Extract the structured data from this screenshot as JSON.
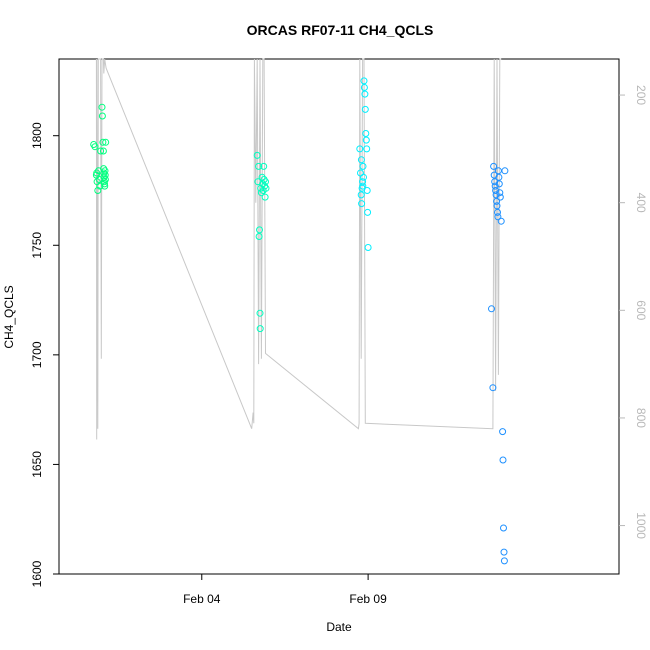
{
  "chart_data": {
    "type": "scatter",
    "title": "ORCAS RF07-11 CH4_QCLS",
    "xlabel": "Date",
    "ylabel": "CH4_QCLS",
    "ylim": [
      1600,
      1835
    ],
    "yticks": [
      1600,
      1650,
      1700,
      1750,
      1800
    ],
    "x_axis": {
      "type": "date",
      "range_start": "2016-01-30T17:00",
      "range_end": "2016-02-16T13:00",
      "ticks": [
        {
          "value": "2016-02-04T00:00",
          "label": "Feb 04"
        },
        {
          "value": "2016-02-09T00:00",
          "label": "Feb 09"
        }
      ]
    },
    "secondary_axis": {
      "side": "right",
      "range": [
        1090,
        133
      ],
      "ticks": [
        200,
        400,
        600,
        800,
        1000
      ],
      "color": "#b8b8b8"
    },
    "grid": false,
    "series": [
      {
        "color": "#00ff7f",
        "points": [
          {
            "x": "2016-01-31T18:00",
            "y": 1796
          },
          {
            "x": "2016-01-31T19:00",
            "y": 1795
          },
          {
            "x": "2016-01-31T20:00",
            "y": 1782
          },
          {
            "x": "2016-01-31T20:30",
            "y": 1779
          },
          {
            "x": "2016-01-31T21:00",
            "y": 1775
          },
          {
            "x": "2016-01-31T21:30",
            "y": 1784
          },
          {
            "x": "2016-01-31T22:00",
            "y": 1780
          },
          {
            "x": "2016-01-31T23:00",
            "y": 1793
          },
          {
            "x": "2016-02-01T00:00",
            "y": 1813
          },
          {
            "x": "2016-02-01T00:20",
            "y": 1809
          },
          {
            "x": "2016-02-01T00:40",
            "y": 1797
          },
          {
            "x": "2016-02-01T01:00",
            "y": 1793
          },
          {
            "x": "2016-02-01T01:10",
            "y": 1785
          },
          {
            "x": "2016-02-01T01:20",
            "y": 1783
          },
          {
            "x": "2016-02-01T01:30",
            "y": 1781
          },
          {
            "x": "2016-02-01T01:40",
            "y": 1779
          },
          {
            "x": "2016-02-01T01:50",
            "y": 1778
          },
          {
            "x": "2016-02-01T02:00",
            "y": 1777
          },
          {
            "x": "2016-02-01T02:10",
            "y": 1784
          },
          {
            "x": "2016-02-01T02:20",
            "y": 1782
          },
          {
            "x": "2016-02-01T02:30",
            "y": 1780
          },
          {
            "x": "2016-02-01T02:40",
            "y": 1797
          },
          {
            "x": "2016-01-31T20:10",
            "y": 1783
          },
          {
            "x": "2016-01-31T22:30",
            "y": 1777
          }
        ]
      },
      {
        "color": "#00ffc0",
        "points": [
          {
            "x": "2016-02-05T16:00",
            "y": 1791
          },
          {
            "x": "2016-02-05T16:30",
            "y": 1779
          },
          {
            "x": "2016-02-05T17:00",
            "y": 1786
          },
          {
            "x": "2016-02-05T17:20",
            "y": 1754
          },
          {
            "x": "2016-02-05T17:40",
            "y": 1757
          },
          {
            "x": "2016-02-05T18:00",
            "y": 1719
          },
          {
            "x": "2016-02-05T18:10",
            "y": 1712
          },
          {
            "x": "2016-02-05T18:30",
            "y": 1776
          },
          {
            "x": "2016-02-05T19:00",
            "y": 1774
          },
          {
            "x": "2016-02-05T19:30",
            "y": 1781
          },
          {
            "x": "2016-02-05T20:00",
            "y": 1778
          },
          {
            "x": "2016-02-05T20:20",
            "y": 1775
          },
          {
            "x": "2016-02-05T20:40",
            "y": 1786
          },
          {
            "x": "2016-02-05T21:00",
            "y": 1780
          },
          {
            "x": "2016-02-05T21:20",
            "y": 1777
          },
          {
            "x": "2016-02-05T21:40",
            "y": 1772
          },
          {
            "x": "2016-02-05T22:00",
            "y": 1779
          },
          {
            "x": "2016-02-05T22:20",
            "y": 1776
          }
        ]
      },
      {
        "color": "#00f0ff",
        "points": [
          {
            "x": "2016-02-08T18:00",
            "y": 1794
          },
          {
            "x": "2016-02-08T18:30",
            "y": 1783
          },
          {
            "x": "2016-02-08T19:00",
            "y": 1773
          },
          {
            "x": "2016-02-08T19:20",
            "y": 1769
          },
          {
            "x": "2016-02-08T19:40",
            "y": 1776
          },
          {
            "x": "2016-02-08T20:00",
            "y": 1779
          },
          {
            "x": "2016-02-08T20:20",
            "y": 1786
          },
          {
            "x": "2016-02-08T20:40",
            "y": 1781
          },
          {
            "x": "2016-02-08T21:00",
            "y": 1825
          },
          {
            "x": "2016-02-08T21:20",
            "y": 1822
          },
          {
            "x": "2016-02-08T21:40",
            "y": 1819
          },
          {
            "x": "2016-02-08T22:00",
            "y": 1812
          },
          {
            "x": "2016-02-08T22:20",
            "y": 1801
          },
          {
            "x": "2016-02-08T22:40",
            "y": 1798
          },
          {
            "x": "2016-02-08T23:00",
            "y": 1794
          },
          {
            "x": "2016-02-08T23:20",
            "y": 1775
          },
          {
            "x": "2016-02-08T23:40",
            "y": 1765
          },
          {
            "x": "2016-02-09T00:00",
            "y": 1749
          },
          {
            "x": "2016-02-08T19:10",
            "y": 1789
          },
          {
            "x": "2016-02-08T20:10",
            "y": 1777
          }
        ]
      },
      {
        "color": "#1e90ff",
        "points": [
          {
            "x": "2016-02-12T17:00",
            "y": 1721
          },
          {
            "x": "2016-02-12T18:00",
            "y": 1685
          },
          {
            "x": "2016-02-12T18:30",
            "y": 1786
          },
          {
            "x": "2016-02-12T19:00",
            "y": 1782
          },
          {
            "x": "2016-02-12T19:20",
            "y": 1779
          },
          {
            "x": "2016-02-12T19:40",
            "y": 1777
          },
          {
            "x": "2016-02-12T20:00",
            "y": 1775
          },
          {
            "x": "2016-02-12T20:20",
            "y": 1773
          },
          {
            "x": "2016-02-12T20:40",
            "y": 1770
          },
          {
            "x": "2016-02-12T21:00",
            "y": 1768
          },
          {
            "x": "2016-02-12T21:20",
            "y": 1765
          },
          {
            "x": "2016-02-12T21:40",
            "y": 1763
          },
          {
            "x": "2016-02-12T22:00",
            "y": 1784
          },
          {
            "x": "2016-02-12T22:20",
            "y": 1781
          },
          {
            "x": "2016-02-12T22:40",
            "y": 1778
          },
          {
            "x": "2016-02-12T23:00",
            "y": 1774
          },
          {
            "x": "2016-02-12T23:20",
            "y": 1772
          },
          {
            "x": "2016-02-13T00:00",
            "y": 1761
          },
          {
            "x": "2016-02-13T01:00",
            "y": 1665
          },
          {
            "x": "2016-02-13T01:20",
            "y": 1652
          },
          {
            "x": "2016-02-13T01:40",
            "y": 1621
          },
          {
            "x": "2016-02-13T02:00",
            "y": 1610
          },
          {
            "x": "2016-02-13T02:20",
            "y": 1606
          },
          {
            "x": "2016-02-13T02:40",
            "y": 1784
          }
        ]
      }
    ],
    "secondary_series": {
      "color": "#c8c8c8",
      "points": [
        {
          "x": "2016-01-31T20:00",
          "y": 133
        },
        {
          "x": "2016-01-31T20:10",
          "y": 840
        },
        {
          "x": "2016-01-31T20:20",
          "y": 133
        },
        {
          "x": "2016-01-31T21:00",
          "y": 820
        },
        {
          "x": "2016-01-31T21:20",
          "y": 133
        },
        {
          "x": "2016-01-31T23:00",
          "y": 133
        },
        {
          "x": "2016-01-31T23:30",
          "y": 690
        },
        {
          "x": "2016-02-01T00:00",
          "y": 133
        },
        {
          "x": "2016-02-01T01:00",
          "y": 133
        },
        {
          "x": "2016-02-01T01:20",
          "y": 160
        },
        {
          "x": "2016-02-01T02:00",
          "y": 133
        },
        {
          "x": "2016-02-01T03:00",
          "y": 150
        },
        {
          "x": "2016-02-05T12:00",
          "y": 820
        },
        {
          "x": "2016-02-05T13:00",
          "y": 790
        },
        {
          "x": "2016-02-05T13:30",
          "y": 810
        },
        {
          "x": "2016-02-05T14:00",
          "y": 133
        },
        {
          "x": "2016-02-05T15:00",
          "y": 400
        },
        {
          "x": "2016-02-05T16:00",
          "y": 133
        },
        {
          "x": "2016-02-05T17:00",
          "y": 700
        },
        {
          "x": "2016-02-05T18:00",
          "y": 133
        },
        {
          "x": "2016-02-05T19:00",
          "y": 690
        },
        {
          "x": "2016-02-05T20:00",
          "y": 133
        },
        {
          "x": "2016-02-05T21:00",
          "y": 133
        },
        {
          "x": "2016-02-05T22:00",
          "y": 680
        },
        {
          "x": "2016-02-08T17:00",
          "y": 820
        },
        {
          "x": "2016-02-08T17:30",
          "y": 810
        },
        {
          "x": "2016-02-08T18:00",
          "y": 133
        },
        {
          "x": "2016-02-08T19:00",
          "y": 690
        },
        {
          "x": "2016-02-08T20:00",
          "y": 133
        },
        {
          "x": "2016-02-08T21:00",
          "y": 133
        },
        {
          "x": "2016-02-08T22:00",
          "y": 810
        },
        {
          "x": "2016-02-12T18:00",
          "y": 820
        },
        {
          "x": "2016-02-12T19:00",
          "y": 133
        },
        {
          "x": "2016-02-12T20:00",
          "y": 750
        },
        {
          "x": "2016-02-12T21:00",
          "y": 133
        },
        {
          "x": "2016-02-12T22:00",
          "y": 720
        },
        {
          "x": "2016-02-12T23:00",
          "y": 133
        },
        {
          "x": "2016-02-13T00:00",
          "y": 133
        }
      ]
    }
  }
}
